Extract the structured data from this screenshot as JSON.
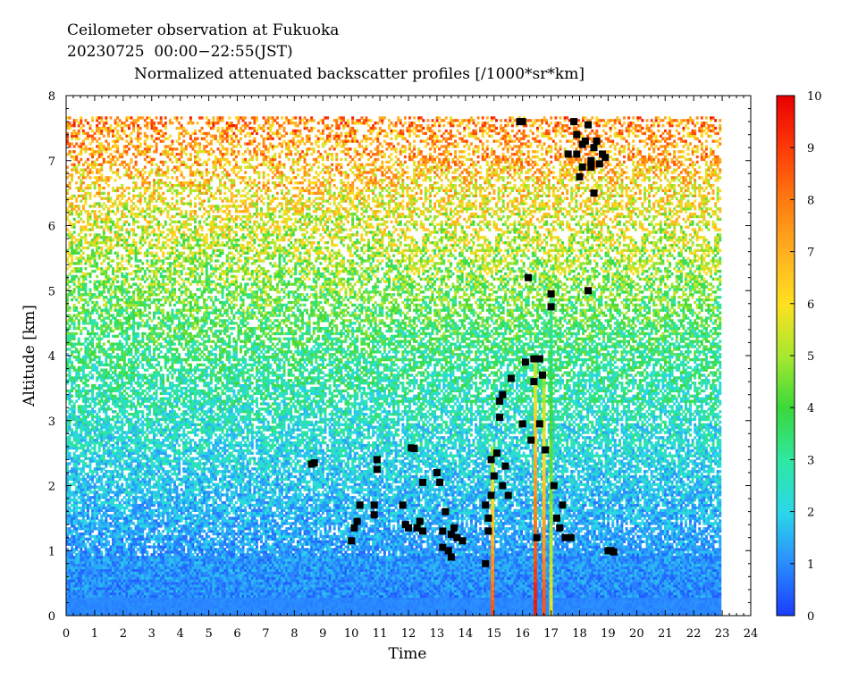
{
  "header": {
    "title": "Ceilometer observation at Fukuoka",
    "subtitle": "20230725  00:00−22:55(JST)",
    "product": "Normalized attenuated backscatter profiles [/1000*sr*km]"
  },
  "chart_data": {
    "type": "heatmap",
    "title": "Ceilometer observation at Fukuoka",
    "subtitle": "20230725  00:00−22:55(JST)",
    "product_title": "Normalized attenuated backscatter profiles [/1000*sr*km]",
    "xlabel": "Time",
    "ylabel": "Altitude [km]",
    "xlim": [
      0,
      24
    ],
    "ylim": [
      0,
      8
    ],
    "data_time_range": [
      0,
      22.92
    ],
    "data_altitude_max": 7.68,
    "x_ticks": [
      "0",
      "1",
      "2",
      "3",
      "4",
      "5",
      "6",
      "7",
      "8",
      "9",
      "10",
      "11",
      "12",
      "13",
      "14",
      "15",
      "16",
      "17",
      "18",
      "19",
      "20",
      "21",
      "22",
      "23",
      "24"
    ],
    "y_ticks": [
      "0",
      "1",
      "2",
      "3",
      "4",
      "5",
      "6",
      "7",
      "8"
    ],
    "colorbar": {
      "min": 0,
      "max": 10,
      "ticks": [
        "0",
        "1",
        "2",
        "3",
        "4",
        "5",
        "6",
        "7",
        "8",
        "9",
        "10"
      ],
      "colors": [
        "#1a3cff",
        "#2a8cff",
        "#2ad8e8",
        "#2ee8a0",
        "#3ad83a",
        "#a8e830",
        "#ffe020",
        "#ffb020",
        "#ff7a10",
        "#ff3a08",
        "#e80000"
      ]
    },
    "background_profile": [
      {
        "altitude_km": 0.3,
        "value": 1.0
      },
      {
        "altitude_km": 1.0,
        "value": 1.2
      },
      {
        "altitude_km": 2.0,
        "value": 1.8
      },
      {
        "altitude_km": 3.0,
        "value": 2.5
      },
      {
        "altitude_km": 4.0,
        "value": 3.3
      },
      {
        "altitude_km": 5.0,
        "value": 4.3
      },
      {
        "altitude_km": 6.0,
        "value": 5.5
      },
      {
        "altitude_km": 7.0,
        "value": 7.0
      },
      {
        "altitude_km": 7.6,
        "value": 7.8
      }
    ],
    "strong_plumes": [
      {
        "time": 14.95,
        "bottom": 0.0,
        "top": 2.6,
        "peak": 9
      },
      {
        "time": 16.45,
        "bottom": 0.0,
        "top": 3.9,
        "peak": 10
      },
      {
        "time": 16.75,
        "bottom": 0.0,
        "top": 3.8,
        "peak": 9
      },
      {
        "time": 17.0,
        "bottom": 0.0,
        "top": 4.9,
        "peak": 6
      }
    ],
    "cloud_base_points": [
      [
        8.6,
        2.33
      ],
      [
        8.7,
        2.35
      ],
      [
        10.0,
        1.15
      ],
      [
        10.1,
        1.35
      ],
      [
        10.2,
        1.45
      ],
      [
        10.3,
        1.7
      ],
      [
        10.8,
        1.55
      ],
      [
        10.8,
        1.7
      ],
      [
        10.9,
        2.25
      ],
      [
        10.9,
        2.4
      ],
      [
        11.8,
        1.7
      ],
      [
        11.9,
        1.4
      ],
      [
        12.0,
        1.35
      ],
      [
        12.1,
        2.58
      ],
      [
        12.2,
        2.57
      ],
      [
        12.3,
        1.35
      ],
      [
        12.4,
        1.45
      ],
      [
        12.5,
        1.3
      ],
      [
        12.5,
        2.05
      ],
      [
        13.0,
        2.2
      ],
      [
        13.1,
        2.05
      ],
      [
        13.2,
        1.3
      ],
      [
        13.2,
        1.05
      ],
      [
        13.3,
        1.6
      ],
      [
        13.4,
        1.0
      ],
      [
        13.5,
        0.9
      ],
      [
        13.5,
        1.25
      ],
      [
        13.6,
        1.35
      ],
      [
        13.7,
        1.2
      ],
      [
        13.9,
        1.15
      ],
      [
        14.7,
        0.8
      ],
      [
        14.7,
        1.7
      ],
      [
        14.8,
        1.3
      ],
      [
        14.8,
        1.5
      ],
      [
        14.9,
        1.85
      ],
      [
        14.9,
        2.4
      ],
      [
        15.0,
        2.15
      ],
      [
        15.1,
        2.5
      ],
      [
        15.2,
        3.05
      ],
      [
        15.2,
        3.3
      ],
      [
        15.3,
        3.4
      ],
      [
        15.3,
        2.0
      ],
      [
        15.4,
        2.3
      ],
      [
        15.5,
        1.85
      ],
      [
        15.6,
        3.65
      ],
      [
        15.9,
        7.6
      ],
      [
        16.0,
        7.6
      ],
      [
        16.0,
        2.95
      ],
      [
        16.1,
        3.9
      ],
      [
        16.2,
        5.2
      ],
      [
        16.3,
        2.7
      ],
      [
        16.4,
        3.6
      ],
      [
        16.4,
        3.95
      ],
      [
        16.5,
        1.2
      ],
      [
        16.6,
        2.95
      ],
      [
        16.6,
        3.95
      ],
      [
        16.7,
        3.7
      ],
      [
        16.8,
        2.55
      ],
      [
        17.0,
        4.95
      ],
      [
        17.0,
        4.75
      ],
      [
        17.1,
        2.0
      ],
      [
        17.2,
        1.5
      ],
      [
        17.3,
        1.35
      ],
      [
        17.4,
        1.7
      ],
      [
        17.5,
        1.2
      ],
      [
        17.7,
        1.2
      ],
      [
        17.6,
        7.1
      ],
      [
        17.8,
        7.6
      ],
      [
        17.9,
        7.4
      ],
      [
        17.9,
        7.1
      ],
      [
        18.0,
        6.75
      ],
      [
        18.1,
        7.25
      ],
      [
        18.1,
        6.9
      ],
      [
        18.2,
        7.3
      ],
      [
        18.3,
        7.55
      ],
      [
        18.3,
        5.0
      ],
      [
        18.4,
        7.0
      ],
      [
        18.4,
        6.9
      ],
      [
        18.5,
        7.2
      ],
      [
        18.5,
        6.5
      ],
      [
        18.6,
        7.3
      ],
      [
        18.7,
        6.95
      ],
      [
        18.8,
        7.1
      ],
      [
        18.9,
        7.05
      ],
      [
        19.0,
        1.0
      ],
      [
        19.1,
        1.0
      ],
      [
        19.2,
        0.98
      ]
    ]
  }
}
